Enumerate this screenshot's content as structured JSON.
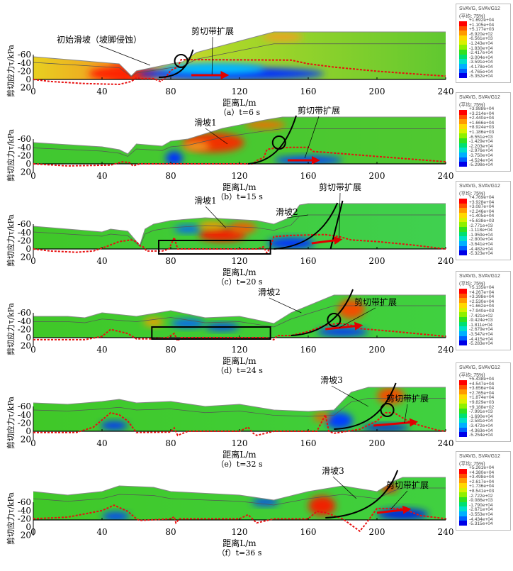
{
  "y_axis_label": "剪切应力τ/kPa",
  "x_axis_label": "距离L/m",
  "legend_colors": [
    "#ff0000",
    "#ff5000",
    "#ff9a00",
    "#ffd800",
    "#d8f000",
    "#8ef000",
    "#30e020",
    "#00e070",
    "#00e0c8",
    "#00b0ff",
    "#0060ff",
    "#0000e8"
  ],
  "legends": [
    {
      "title": "SVAVG, SVAVG12",
      "subtitle": "(平均: 75%)",
      "values": [
        "+1.692e+04",
        "+1.105e+04",
        "+5.177e+03",
        "-6.920e+02",
        "-6.561e+03",
        "-1.243e+04",
        "-1.830e+04",
        "-2.417e+04",
        "-3.004e+04",
        "-3.591e+04",
        "-4.178e+04",
        "-4.765e+04",
        "-5.352e+04"
      ]
    },
    {
      "title": "SVAVG, SVAVG12",
      "subtitle": "(平均: 75%)",
      "values": [
        "+3.988e+04",
        "+3.214e+04",
        "+2.440e+04",
        "+1.666e+04",
        "+8.924e+03",
        "+1.186e+03",
        "-6.551e+03",
        "-1.429e+04",
        "-2.203e+04",
        "-2.976e+04",
        "-3.750e+04",
        "-4.524e+04",
        "-5.298e+04"
      ]
    },
    {
      "title": "SVAVG, SVAVG12",
      "subtitle": "(平均: 75%)",
      "values": [
        "+4.769e+04",
        "+3.928e+04",
        "+3.087e+04",
        "+2.246e+04",
        "+1.405e+04",
        "+5.638e+03",
        "-2.771e+03",
        "-1.118e+04",
        "-1.959e+04",
        "-2.800e+04",
        "-3.641e+04",
        "-4.482e+04",
        "-5.323e+04"
      ]
    },
    {
      "title": "SVAVG, SVAVG12",
      "subtitle": "(平均: 75%)",
      "values": [
        "+5.135e+04",
        "+4.267e+04",
        "+3.398e+04",
        "+2.530e+04",
        "+1.662e+04",
        "+7.940e+03",
        "-7.421e+02",
        "-9.424e+03",
        "-1.811e+04",
        "-2.679e+04",
        "-3.547e+04",
        "-4.415e+04",
        "-5.283e+04"
      ]
    },
    {
      "title": "SVAVG, SVAVG12",
      "subtitle": "(平均: 75%)",
      "values": [
        "+5.438e+04",
        "+4.547e+04",
        "+3.656e+04",
        "+2.765e+04",
        "+1.874e+04",
        "+9.829e+03",
        "+9.188e+02",
        "-7.991e+03",
        "-1.690e+04",
        "-2.581e+04",
        "-3.472e+04",
        "-4.363e+04",
        "-5.254e+04"
      ]
    },
    {
      "title": "SVAVG, SVAVG12",
      "subtitle": "(平均: 75%)",
      "values": [
        "+5.261e+04",
        "+4.380e+04",
        "+3.498e+04",
        "+2.617e+04",
        "+1.736e+04",
        "+8.541e+03",
        "-2.722e+02",
        "-9.086e+03",
        "-1.790e+04",
        "-2.671e+04",
        "-3.553e+04",
        "-4.434e+04",
        "-5.315e+04"
      ]
    }
  ],
  "chart_data": [
    {
      "type": "line",
      "caption": "（a）t=6 s",
      "xlabel": "距离L/m",
      "ylabel": "剪切应力τ/kPa",
      "xlim": [
        0,
        240
      ],
      "ylim": [
        20,
        -60
      ],
      "x_ticks": [
        "0",
        "40",
        "80",
        "120",
        "160",
        "200",
        "240"
      ],
      "y_ticks": [
        "-60",
        "-40",
        "-20",
        "0",
        "20"
      ],
      "annotations": [
        "初始滑坡（坡脚侵蚀）",
        "剪切带扩展"
      ],
      "series": [
        {
          "name": "shear stress",
          "x": [
            0,
            10,
            30,
            50,
            57,
            60,
            63,
            70,
            74,
            77,
            80,
            84,
            86,
            100,
            150,
            160,
            175,
            200,
            240
          ],
          "y": [
            0,
            5,
            10,
            12,
            5,
            -4,
            -2,
            -2,
            5,
            -5,
            -22,
            -30,
            -48,
            -48,
            -47,
            -38,
            -30,
            -20,
            -8
          ]
        }
      ]
    },
    {
      "type": "line",
      "caption": "（b）t=15 s",
      "xlabel": "距离L/m",
      "ylabel": "剪切应力τ/kPa",
      "xlim": [
        0,
        240
      ],
      "ylim": [
        20,
        -60
      ],
      "x_ticks": [
        "0",
        "40",
        "80",
        "120",
        "160",
        "200",
        "240"
      ],
      "y_ticks": [
        "-60",
        "-40",
        "-20",
        "0",
        "20"
      ],
      "annotations": [
        "滑坡1",
        "剪切带扩展"
      ],
      "series": [
        {
          "name": "shear stress",
          "x": [
            0,
            20,
            45,
            52,
            56,
            58,
            62,
            80,
            128,
            130,
            134,
            136,
            140,
            150,
            160,
            163,
            170,
            200,
            240
          ],
          "y": [
            0,
            5,
            3,
            -5,
            -3,
            5,
            0,
            0,
            0,
            -8,
            -15,
            -35,
            -38,
            -40,
            -40,
            -30,
            -28,
            -18,
            -5
          ]
        }
      ]
    },
    {
      "type": "line",
      "caption": "（c）t=20 s",
      "xlabel": "距离L/m",
      "ylabel": "剪切应力τ/kPa",
      "xlim": [
        0,
        240
      ],
      "ylim": [
        20,
        -60
      ],
      "x_ticks": [
        "0",
        "40",
        "80",
        "120",
        "160",
        "200",
        "240"
      ],
      "y_ticks": [
        "-60",
        "-40",
        "-20",
        "0",
        "20"
      ],
      "annotations": [
        "滑坡1",
        "滑坡2",
        "剪切带扩展"
      ],
      "series": [
        {
          "name": "shear stress",
          "x": [
            0,
            10,
            25,
            35,
            42,
            50,
            57,
            60,
            62,
            64,
            66,
            75,
            79,
            82,
            84,
            130,
            134,
            136,
            138,
            140,
            150,
            170,
            178,
            185,
            200,
            220,
            240
          ],
          "y": [
            0,
            5,
            8,
            5,
            -5,
            -18,
            -22,
            -18,
            -8,
            -5,
            5,
            5,
            0,
            -28,
            0,
            0,
            -5,
            10,
            -5,
            -30,
            -33,
            -35,
            -30,
            -22,
            -18,
            -10,
            0
          ]
        }
      ]
    },
    {
      "type": "line",
      "caption": "（d）t=24 s",
      "xlabel": "距离L/m",
      "ylabel": "剪切应力τ/kPa",
      "xlim": [
        0,
        240
      ],
      "ylim": [
        20,
        -60
      ],
      "x_ticks": [
        "0",
        "40",
        "80",
        "120",
        "160",
        "200",
        "240"
      ],
      "y_ticks": [
        "-60",
        "-40",
        "-20",
        "0",
        "20"
      ],
      "annotations": [
        "滑坡2",
        "剪切带扩展"
      ],
      "series": [
        {
          "name": "shear stress",
          "x": [
            0,
            30,
            40,
            45,
            50,
            55,
            60,
            70,
            78,
            82,
            84,
            86,
            135,
            140,
            142,
            150,
            160,
            170,
            178,
            185,
            190,
            210,
            240
          ],
          "y": [
            5,
            5,
            -3,
            -20,
            -15,
            -10,
            3,
            3,
            0,
            -10,
            8,
            0,
            0,
            5,
            -5,
            -5,
            -15,
            -30,
            -35,
            -30,
            -22,
            -15,
            -3
          ]
        }
      ]
    },
    {
      "type": "line",
      "caption": "（e）t=32 s",
      "xlabel": "距离L/m",
      "ylabel": "剪切应力τ/kPa",
      "xlim": [
        0,
        240
      ],
      "ylim": [
        20,
        -60
      ],
      "x_ticks": [
        "0",
        "40",
        "80",
        "120",
        "160",
        "200",
        "240"
      ],
      "y_ticks": [
        "-60",
        "-40",
        "-20",
        "0",
        "20"
      ],
      "annotations": [
        "滑坡3",
        "剪切带扩展"
      ],
      "series": [
        {
          "name": "shear stress",
          "x": [
            0,
            25,
            35,
            45,
            50,
            55,
            60,
            80,
            82,
            84,
            90,
            120,
            125,
            128,
            130,
            140,
            165,
            170,
            172,
            175,
            190,
            200,
            205,
            210,
            220,
            235,
            240
          ],
          "y": [
            3,
            3,
            -10,
            -45,
            -40,
            -25,
            3,
            2,
            -8,
            10,
            0,
            0,
            -10,
            5,
            10,
            0,
            0,
            -40,
            0,
            5,
            -5,
            -25,
            -45,
            -45,
            -20,
            -3,
            0
          ]
        }
      ]
    },
    {
      "type": "line",
      "caption": "（f）t=36 s",
      "xlabel": "距离L/m",
      "ylabel": "剪切应力τ/kPa",
      "xlim": [
        0,
        240
      ],
      "ylim": [
        20,
        -60
      ],
      "x_ticks": [
        "0",
        "40",
        "80",
        "120",
        "160",
        "200",
        "240"
      ],
      "y_ticks": [
        "-60",
        "-40",
        "-20",
        "0",
        "20"
      ],
      "annotations": [
        "滑坡3",
        "剪切带扩展"
      ],
      "series": [
        {
          "name": "shear stress",
          "x": [
            0,
            20,
            40,
            47,
            55,
            60,
            62,
            80,
            82,
            83,
            85,
            120,
            125,
            130,
            140,
            160,
            165,
            170,
            180,
            185,
            190,
            193,
            200,
            215,
            225,
            240
          ],
          "y": [
            -20,
            -24,
            -40,
            -53,
            -38,
            -20,
            -16,
            -20,
            -25,
            -10,
            -20,
            -20,
            -30,
            -10,
            -20,
            -20,
            -38,
            -35,
            -20,
            -5,
            10,
            -5,
            -45,
            -45,
            -28,
            -20
          ]
        }
      ]
    }
  ]
}
